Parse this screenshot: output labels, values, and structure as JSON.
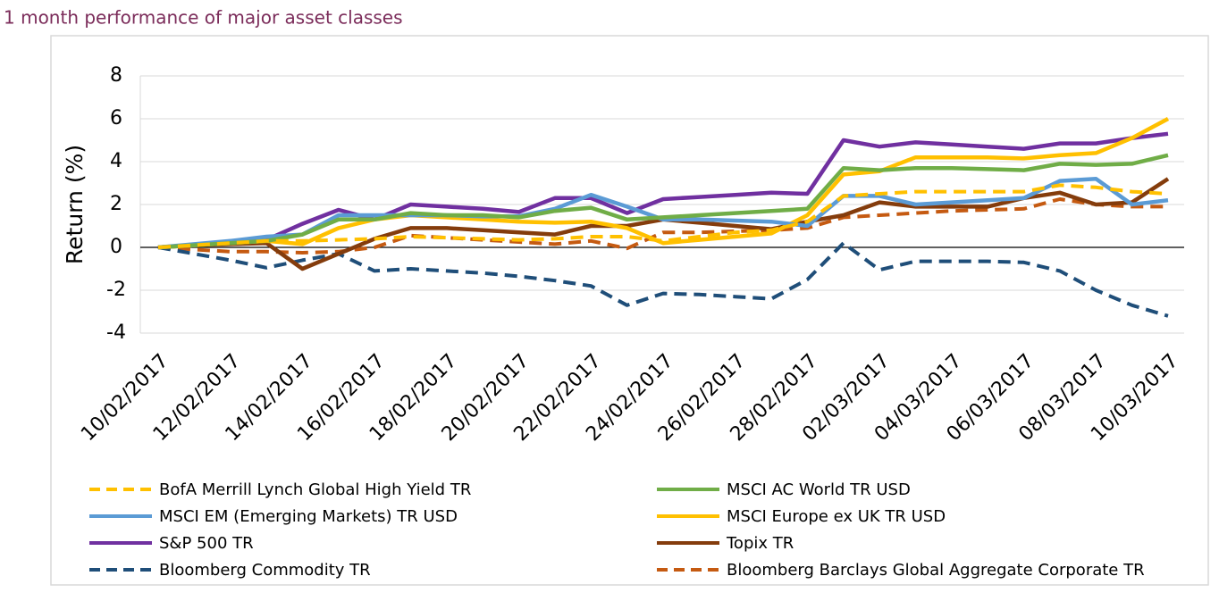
{
  "chart_data": {
    "type": "line",
    "title": "1 month performance of major asset classes",
    "y_label": "Return (%)",
    "categories": [
      "10/02/2017",
      null,
      "12/02/2017",
      null,
      "14/02/2017",
      null,
      "16/02/2017",
      null,
      "18/02/2017",
      null,
      "20/02/2017",
      null,
      "22/02/2017",
      null,
      "24/02/2017",
      null,
      "26/02/2017",
      null,
      "28/02/2017",
      null,
      "02/03/2017",
      null,
      "04/03/2017",
      null,
      "06/03/2017",
      null,
      "08/03/2017",
      null,
      "10/03/2017"
    ],
    "ylim": [
      -4,
      8
    ],
    "yticks": [
      -4,
      -2,
      0,
      2,
      4,
      6,
      8
    ],
    "grid": true,
    "series": [
      {
        "name": "BofA Merrill Lynch Global High Yield TR",
        "color": "#ffc000",
        "dashed": true,
        "values": [
          0,
          0.1,
          0.2,
          0.3,
          0.3,
          0.35,
          0.4,
          0.5,
          0.45,
          0.4,
          0.35,
          0.4,
          0.5,
          0.5,
          0.3,
          0.5,
          0.7,
          0.8,
          1.2,
          2.4,
          2.5,
          2.6,
          2.6,
          2.6,
          2.6,
          2.9,
          2.8,
          2.6,
          2.5
        ]
      },
      {
        "name": "MSCI AC World TR USD",
        "color": "#70ad47",
        "dashed": false,
        "values": [
          0,
          0.1,
          0.2,
          0.3,
          0.6,
          1.3,
          1.3,
          1.6,
          1.5,
          1.5,
          1.4,
          1.7,
          1.85,
          1.3,
          1.4,
          1.5,
          1.6,
          1.7,
          1.8,
          3.7,
          3.6,
          3.7,
          3.7,
          3.65,
          3.6,
          3.9,
          3.85,
          3.9,
          4.3
        ]
      },
      {
        "name": "MSCI EM (Emerging Markets) TR USD",
        "color": "#5b9bd5",
        "dashed": false,
        "values": [
          0,
          0.15,
          0.3,
          0.5,
          0.6,
          1.5,
          1.5,
          1.5,
          1.5,
          1.45,
          1.45,
          1.8,
          2.45,
          1.9,
          1.3,
          1.3,
          1.25,
          1.2,
          1.0,
          2.4,
          2.4,
          2.0,
          2.1,
          2.2,
          2.3,
          3.1,
          3.2,
          2.0,
          2.2
        ]
      },
      {
        "name": "MSCI Europe ex UK TR USD",
        "color": "#ffc000",
        "dashed": false,
        "values": [
          0,
          0.1,
          0.2,
          0.3,
          0.15,
          0.9,
          1.3,
          1.5,
          1.4,
          1.3,
          1.2,
          1.15,
          1.2,
          0.9,
          0.2,
          0.35,
          0.5,
          0.65,
          1.5,
          3.4,
          3.55,
          4.2,
          4.2,
          4.2,
          4.15,
          4.3,
          4.4,
          5.1,
          6.0
        ]
      },
      {
        "name": "S&P 500 TR",
        "color": "#7030a0",
        "dashed": false,
        "values": [
          0,
          0.12,
          0.24,
          0.35,
          1.1,
          1.75,
          1.3,
          2.0,
          1.9,
          1.8,
          1.65,
          2.3,
          2.3,
          1.6,
          2.25,
          2.35,
          2.45,
          2.55,
          2.5,
          5.0,
          4.7,
          4.9,
          4.8,
          4.7,
          4.6,
          4.85,
          4.85,
          5.1,
          5.3
        ]
      },
      {
        "name": "Topix TR",
        "color": "#843c0c",
        "dashed": false,
        "values": [
          0,
          0.1,
          0.15,
          0.2,
          -1.0,
          -0.3,
          0.4,
          0.9,
          0.9,
          0.8,
          0.7,
          0.6,
          1.0,
          1.0,
          1.3,
          1.15,
          1.0,
          0.85,
          1.2,
          1.5,
          2.1,
          1.9,
          1.9,
          1.9,
          2.3,
          2.55,
          2.0,
          2.1,
          3.2
        ]
      },
      {
        "name": "Bloomberg Commodity TR",
        "color": "#1f4e79",
        "dashed": true,
        "values": [
          0,
          -0.3,
          -0.6,
          -0.95,
          -0.6,
          -0.3,
          -1.1,
          -1.0,
          -1.1,
          -1.2,
          -1.35,
          -1.55,
          -1.8,
          -2.7,
          -2.15,
          -2.2,
          -2.3,
          -2.4,
          -1.5,
          0.2,
          -1.05,
          -0.65,
          -0.65,
          -0.65,
          -0.7,
          -1.1,
          -2.0,
          -2.7,
          -3.2
        ]
      },
      {
        "name": "Bloomberg Barclays Global Aggregate Corporate TR",
        "color": "#c55a11",
        "dashed": true,
        "values": [
          0,
          -0.1,
          -0.2,
          -0.2,
          -0.25,
          -0.2,
          0,
          0.55,
          0.45,
          0.35,
          0.25,
          0.15,
          0.3,
          -0.05,
          0.7,
          0.7,
          0.75,
          0.8,
          0.9,
          1.4,
          1.5,
          1.6,
          1.7,
          1.75,
          1.8,
          2.25,
          2.0,
          1.9,
          1.9
        ]
      }
    ]
  }
}
